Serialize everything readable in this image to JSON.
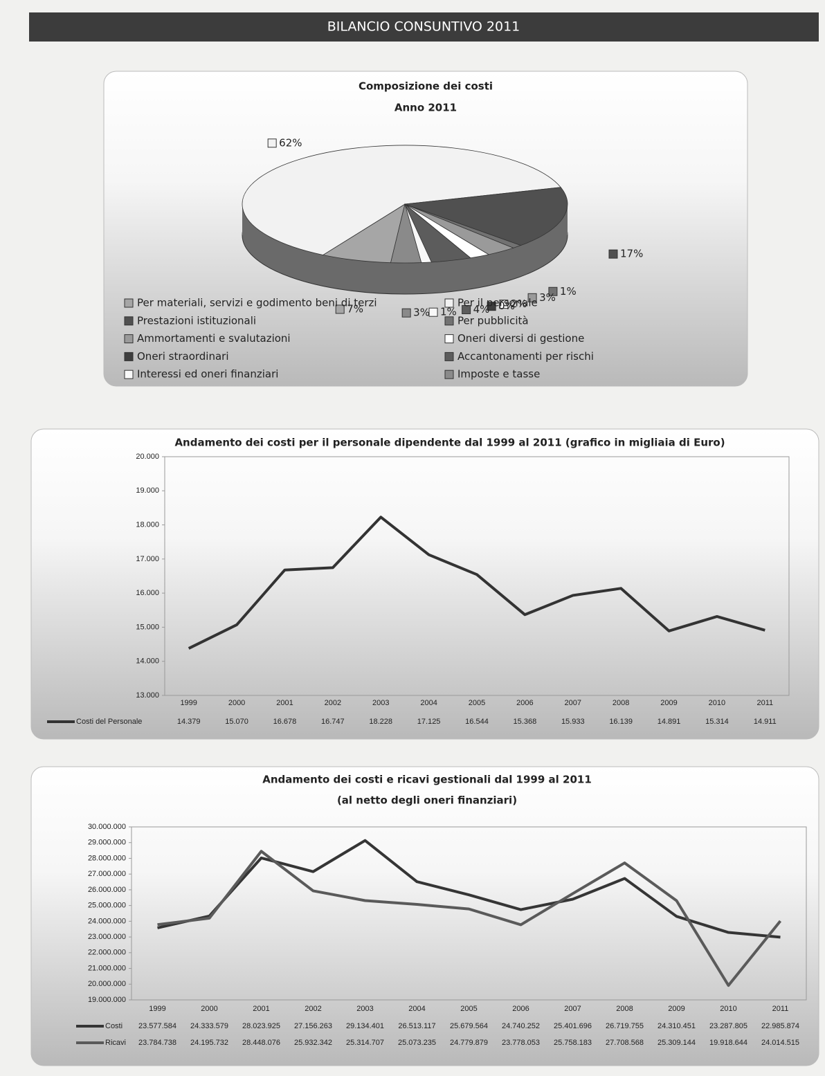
{
  "header": {
    "title": "BILANCIO CONSUNTIVO 2011"
  },
  "chart_data": [
    {
      "type": "pie",
      "title": "Composizione dei costi",
      "subtitle": "Anno 2011",
      "categories": [
        "Per materiali, servizi e godimento beni di terzi",
        "Per il personale",
        "Prestazioni istituzionali",
        "Per pubblicità",
        "Ammortamenti e svalutazioni",
        "Oneri diversi di gestione",
        "Oneri straordinari",
        "Accantonamenti per rischi",
        "Interessi ed oneri finanziari",
        "Imposte e tasse"
      ],
      "values": [
        7,
        62,
        17,
        1,
        3,
        2,
        0,
        4,
        1,
        3
      ],
      "value_labels": [
        "7%",
        "62%",
        "17%",
        "1%",
        "3%",
        "2%",
        "0%",
        "4%",
        "1%",
        "3%"
      ],
      "colors": [
        "#a6a6a6",
        "#f2f2f2",
        "#505050",
        "#727272",
        "#9a9a9a",
        "#ffffff",
        "#3e3e3e",
        "#5c5c5c",
        "#f8f8f8",
        "#8a8a8a"
      ]
    },
    {
      "type": "line",
      "title": "Andamento dei costi per il personale dipendente dal 1999 al 2011 (grafico in migliaia di Euro)",
      "categories": [
        "1999",
        "2000",
        "2001",
        "2002",
        "2003",
        "2004",
        "2005",
        "2006",
        "2007",
        "2008",
        "2009",
        "2010",
        "2011"
      ],
      "series": [
        {
          "name": "Costi del Personale",
          "color": "#333333",
          "values": [
            14379,
            15070,
            16678,
            16747,
            18228,
            17125,
            16544,
            15368,
            15933,
            16139,
            14891,
            15314,
            14911
          ],
          "value_labels": [
            "14.379",
            "15.070",
            "16.678",
            "16.747",
            "18.228",
            "17.125",
            "16.544",
            "15.368",
            "15.933",
            "16.139",
            "14.891",
            "15.314",
            "14.911"
          ]
        }
      ],
      "ylim": [
        13000,
        20000
      ],
      "yticks": [
        {
          "value": 13000,
          "label": "13.000"
        },
        {
          "value": 14000,
          "label": "14.000"
        },
        {
          "value": 15000,
          "label": "15.000"
        },
        {
          "value": 16000,
          "label": "16.000"
        },
        {
          "value": 17000,
          "label": "17.000"
        },
        {
          "value": 18000,
          "label": "18.000"
        },
        {
          "value": 19000,
          "label": "19.000"
        },
        {
          "value": 20000,
          "label": "20.000"
        }
      ],
      "grid": false
    },
    {
      "type": "line",
      "title": "Andamento dei costi e ricavi gestionali dal 1999 al 2011",
      "subtitle": "(al netto degli oneri finanziari)",
      "categories": [
        "1999",
        "2000",
        "2001",
        "2002",
        "2003",
        "2004",
        "2005",
        "2006",
        "2007",
        "2008",
        "2009",
        "2010",
        "2011"
      ],
      "series": [
        {
          "name": "Costi",
          "color": "#353535",
          "values": [
            23577584,
            24333579,
            28023925,
            27156263,
            29134401,
            26513117,
            25679564,
            24740252,
            25401696,
            26719755,
            24310451,
            23287805,
            22985874
          ],
          "value_labels": [
            "23.577.584",
            "24.333.579",
            "28.023.925",
            "27.156.263",
            "29.134.401",
            "26.513.117",
            "25.679.564",
            "24.740.252",
            "25.401.696",
            "26.719.755",
            "24.310.451",
            "23.287.805",
            "22.985.874"
          ]
        },
        {
          "name": "Ricavi",
          "color": "#5a5a5a",
          "values": [
            23784738,
            24195732,
            28448076,
            25932342,
            25314707,
            25073235,
            24779879,
            23778053,
            25758183,
            27708568,
            25309144,
            19918644,
            24014515
          ],
          "value_labels": [
            "23.784.738",
            "24.195.732",
            "28.448.076",
            "25.932.342",
            "25.314.707",
            "25.073.235",
            "24.779.879",
            "23.778.053",
            "25.758.183",
            "27.708.568",
            "25.309.144",
            "19.918.644",
            "24.014.515"
          ]
        }
      ],
      "ylim": [
        19000000,
        30000000
      ],
      "yticks": [
        {
          "value": 19000000,
          "label": "19.000.000"
        },
        {
          "value": 20000000,
          "label": "20.000.000"
        },
        {
          "value": 21000000,
          "label": "21.000.000"
        },
        {
          "value": 22000000,
          "label": "22.000.000"
        },
        {
          "value": 23000000,
          "label": "23.000.000"
        },
        {
          "value": 24000000,
          "label": "24.000.000"
        },
        {
          "value": 25000000,
          "label": "25.000.000"
        },
        {
          "value": 26000000,
          "label": "26.000.000"
        },
        {
          "value": 27000000,
          "label": "27.000.000"
        },
        {
          "value": 28000000,
          "label": "28.000.000"
        },
        {
          "value": 29000000,
          "label": "29.000.000"
        },
        {
          "value": 30000000,
          "label": "30.000.000"
        }
      ],
      "grid": false
    }
  ]
}
